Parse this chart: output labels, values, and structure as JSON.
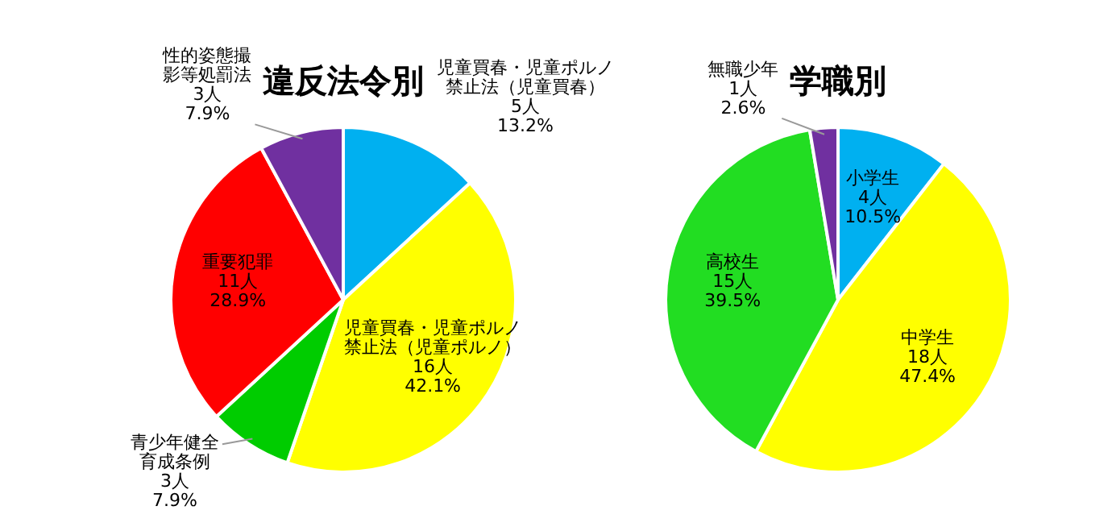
{
  "chart_data": [
    {
      "type": "pie",
      "title": "違反法令別",
      "categories": [
        "児童買春・児童ポルノ禁止法（児童買春）",
        "児童買春・児童ポルノ禁止法（児童ポルノ）",
        "青少年健全育成条例",
        "重要犯罪",
        "性的姿態撮影等処罰法"
      ],
      "values": [
        5,
        16,
        3,
        11,
        3
      ],
      "colors": [
        "#00b0f0",
        "#ffff00",
        "#00cc00",
        "#ff0000",
        "#7030a0"
      ],
      "value_labels": [
        "5人\n13.2%",
        "16人\n42.1%",
        "3人\n7.9%",
        "11人\n28.9%",
        "3人\n7.9%"
      ]
    },
    {
      "type": "pie",
      "title": "学職別",
      "categories": [
        "小学生",
        "中学生",
        "高校生",
        "無職少年"
      ],
      "values": [
        4,
        18,
        15,
        1
      ],
      "colors": [
        "#00b0f0",
        "#ffff00",
        "#22dd22",
        "#7030a0"
      ],
      "value_labels": [
        "4人\n10.5%",
        "18人\n47.4%",
        "15人\n39.5%",
        "1人\n2.6%"
      ]
    }
  ]
}
